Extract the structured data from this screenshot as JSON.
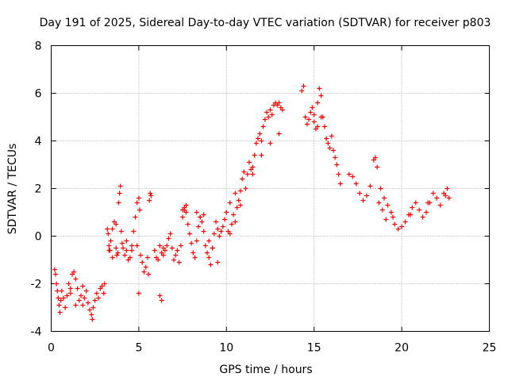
{
  "chart_data": {
    "type": "scatter",
    "title": "Day 191 of 2025, Sidereal Day-to-day VTEC variation (SDTVAR) for receiver p803",
    "xlabel": "GPS time / hours",
    "ylabel": "SDTVAR / TECUs",
    "xlim": [
      0,
      25
    ],
    "ylim": [
      -4,
      8
    ],
    "xticks": [
      0,
      5,
      10,
      15,
      20,
      25
    ],
    "yticks": [
      -4,
      -2,
      0,
      2,
      4,
      6,
      8
    ],
    "grid": true,
    "marker": "plus",
    "color": "#ff0000",
    "series": [
      {
        "name": "SDTVAR",
        "x": [
          0.2,
          0.25,
          0.3,
          0.35,
          0.4,
          0.45,
          0.5,
          0.55,
          0.6,
          0.7,
          0.8,
          0.9,
          1.0,
          1.1,
          1.2,
          1.3,
          1.4,
          1.5,
          1.6,
          1.7,
          1.8,
          1.9,
          2.0,
          2.1,
          2.2,
          2.3,
          2.35,
          2.4,
          2.5,
          2.6,
          2.7,
          2.8,
          2.9,
          3.0,
          3.05,
          3.2,
          3.25,
          3.3,
          3.35,
          3.4,
          3.5,
          3.6,
          3.7,
          3.75,
          3.8,
          3.85,
          3.9,
          3.95,
          4.0,
          4.05,
          4.1,
          4.2,
          4.3,
          4.4,
          4.5,
          4.6,
          4.7,
          4.8,
          4.9,
          5.0,
          5.0,
          5.05,
          5.1,
          5.2,
          5.3,
          5.4,
          5.5,
          5.55,
          5.6,
          5.65,
          5.7,
          5.9,
          6.0,
          6.1,
          6.2,
          6.3,
          6.4,
          6.5,
          6.6,
          6.7,
          6.8,
          6.9,
          7.0,
          7.1,
          7.2,
          7.3,
          7.4,
          7.5,
          7.6,
          7.7,
          7.8,
          7.9,
          8.0,
          8.1,
          8.2,
          8.3,
          8.4,
          8.5,
          8.6,
          8.7,
          8.8,
          8.9,
          9.0,
          9.1,
          9.2,
          9.3,
          9.4,
          9.5,
          9.6,
          9.7,
          9.8,
          9.9,
          10.0,
          10.1,
          10.2,
          10.3,
          10.4,
          10.5,
          10.6,
          10.7,
          10.8,
          10.9,
          11.0,
          11.1,
          11.2,
          11.3,
          11.4,
          11.5,
          11.6,
          11.7,
          11.8,
          11.9,
          12.0,
          12.1,
          12.2,
          12.3,
          12.4,
          12.5,
          12.6,
          12.7,
          12.8,
          12.9,
          13.0,
          13.1,
          13.2,
          14.3,
          14.4,
          14.5,
          14.6,
          14.7,
          14.8,
          14.9,
          15.0,
          15.1,
          15.2,
          15.3,
          15.4,
          15.5,
          15.6,
          15.7,
          15.8,
          15.9,
          16.0,
          16.1,
          16.2,
          16.3,
          16.4,
          16.5,
          17.0,
          17.2,
          17.4,
          17.6,
          17.8,
          18.0,
          18.2,
          18.4,
          18.5,
          18.6,
          18.8,
          19.0,
          19.2,
          19.4,
          19.5,
          19.6,
          19.8,
          20.0,
          20.2,
          20.4,
          20.6,
          20.8,
          21.0,
          21.2,
          21.4,
          21.6,
          21.8,
          22.0,
          22.2,
          22.4,
          22.6,
          22.7,
          6.2,
          6.3,
          6.4,
          7.5,
          7.6,
          7.7,
          8.3,
          8.5,
          8.7,
          9.0,
          9.2,
          9.5,
          3.3,
          3.5,
          3.7,
          4.3,
          4.6,
          4.9,
          1.1,
          1.4,
          1.8,
          10.2,
          10.5,
          10.8,
          11.5,
          12.0,
          12.5,
          13.0,
          15.0,
          15.2,
          15.4,
          18.7,
          18.9,
          19.1,
          20.5,
          21.5,
          22.5
        ],
        "y": [
          -1.4,
          -1.6,
          -2.0,
          -2.3,
          -2.6,
          -2.9,
          -3.2,
          -2.7,
          -2.3,
          -2.6,
          -3.0,
          -2.5,
          -2.0,
          -2.4,
          -1.6,
          -1.5,
          -1.8,
          -2.2,
          -2.7,
          -2.5,
          -2.9,
          -2.6,
          -2.3,
          -2.8,
          -3.1,
          -3.3,
          -3.5,
          -3.0,
          -2.7,
          -2.4,
          -2.6,
          -2.2,
          -2.1,
          -2.4,
          -2.0,
          0.3,
          0.1,
          -0.4,
          -0.6,
          -0.2,
          0.3,
          0.6,
          0.5,
          -0.8,
          -0.7,
          1.4,
          1.8,
          2.1,
          0.2,
          -0.3,
          -0.5,
          -0.8,
          -0.6,
          -1.0,
          -0.9,
          -0.4,
          0.2,
          0.8,
          1.4,
          1.6,
          -2.4,
          1.1,
          -0.8,
          -1.1,
          -1.5,
          -1.3,
          -0.9,
          -1.6,
          1.5,
          1.8,
          1.7,
          -0.6,
          -0.9,
          -1.0,
          -2.5,
          -2.7,
          -0.8,
          -0.6,
          -0.4,
          -0.1,
          0.1,
          -0.5,
          -1.0,
          -0.8,
          -0.6,
          -1.1,
          -0.4,
          1.1,
          1.2,
          1.0,
          0.5,
          0.1,
          -0.3,
          -0.7,
          -0.9,
          -0.2,
          0.4,
          0.8,
          0.6,
          0.2,
          -0.4,
          -0.7,
          -0.9,
          -1.2,
          -0.5,
          0.1,
          0.6,
          0.3,
          0.0,
          0.2,
          0.4,
          0.7,
          1.0,
          0.2,
          0.1,
          0.5,
          0.9,
          0.6,
          1.2,
          1.5,
          1.9,
          2.4,
          2.7,
          2.0,
          2.6,
          3.1,
          2.8,
          2.9,
          3.4,
          3.9,
          4.1,
          4.3,
          4.0,
          4.6,
          4.9,
          5.2,
          5.0,
          5.3,
          5.1,
          5.5,
          5.6,
          5.5,
          5.6,
          5.4,
          5.3,
          6.1,
          6.3,
          5.0,
          4.7,
          4.9,
          5.2,
          5.4,
          4.8,
          4.5,
          5.6,
          6.2,
          5.9,
          5.0,
          4.6,
          4.1,
          3.9,
          3.7,
          4.2,
          3.6,
          3.3,
          3.0,
          2.6,
          2.2,
          2.6,
          2.5,
          2.2,
          1.8,
          1.5,
          1.7,
          2.1,
          3.2,
          3.3,
          2.9,
          2.0,
          1.6,
          1.3,
          1.0,
          0.8,
          0.5,
          0.3,
          0.4,
          0.6,
          0.9,
          1.2,
          1.4,
          1.1,
          0.8,
          1.0,
          1.4,
          1.8,
          1.6,
          1.3,
          1.8,
          2.0,
          1.6,
          -0.4,
          -0.7,
          -0.5,
          0.8,
          1.1,
          1.3,
          1.0,
          0.8,
          0.9,
          -0.2,
          -0.5,
          -1.1,
          -0.6,
          -0.9,
          -0.5,
          -0.2,
          -0.6,
          -0.4,
          -2.2,
          -2.9,
          -2.1,
          1.4,
          1.8,
          1.3,
          2.6,
          3.4,
          3.9,
          4.3,
          5.1,
          4.6,
          5.0,
          1.4,
          1.1,
          0.7,
          0.9,
          1.4,
          1.7
        ]
      }
    ]
  }
}
